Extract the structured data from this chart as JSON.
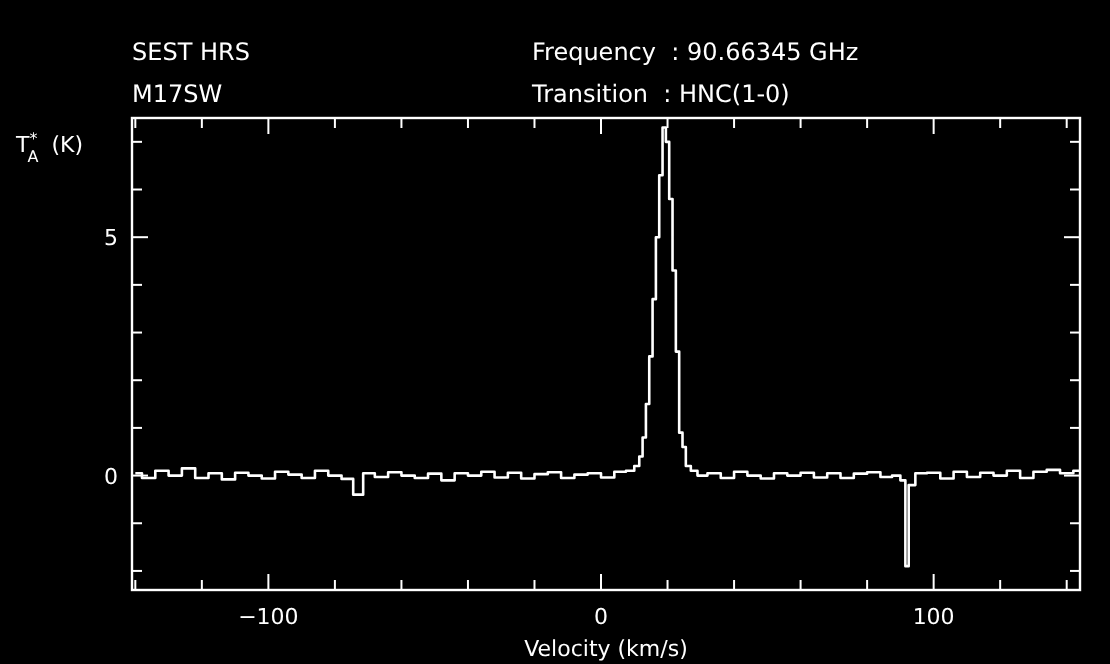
{
  "chart_data": {
    "type": "step",
    "title": "SEST HRS",
    "subtitle": "M17SW",
    "annotations": [
      "Frequency  : 90.66345 GHz",
      "Transition  : HNC(1-0)"
    ],
    "xlabel": "Velocity (km/s)",
    "ylabel": "T$^{*}$$_{A}$ (K)",
    "xlim": [
      -141,
      144
    ],
    "ylim": [
      -2.4,
      7.5
    ],
    "xticks": [
      {
        "value": -140,
        "label": null
      },
      {
        "value": -120,
        "label": null
      },
      {
        "value": -100,
        "label": "−100"
      },
      {
        "value": -80,
        "label": null
      },
      {
        "value": -60,
        "label": null
      },
      {
        "value": -40,
        "label": null
      },
      {
        "value": -20,
        "label": null
      },
      0,
      {
        "value": 20,
        "label": null
      },
      {
        "value": 40,
        "label": null
      },
      {
        "value": 60,
        "label": null
      },
      {
        "value": 80,
        "label": null
      },
      100,
      {
        "value": 120,
        "label": null
      },
      {
        "value": 140,
        "label": null
      }
    ],
    "yticks": [
      {
        "value": -2,
        "label": null
      },
      {
        "value": -1,
        "label": null
      },
      0,
      {
        "value": 1,
        "label": null
      },
      {
        "value": 2,
        "label": null
      },
      {
        "value": 3,
        "label": null
      },
      {
        "value": 4,
        "label": null
      },
      5,
      {
        "value": 6,
        "label": null
      },
      {
        "value": 7,
        "label": null
      }
    ],
    "x": [
      -140,
      -136,
      -132,
      -128,
      -124,
      -120,
      -116,
      -112,
      -108,
      -104,
      -100,
      -96,
      -92,
      -88,
      -84,
      -80,
      -76,
      -73,
      -70,
      -66,
      -62,
      -58,
      -54,
      -50,
      -46,
      -42,
      -38,
      -34,
      -30,
      -26,
      -22,
      -18,
      -14,
      -10,
      -6,
      -2,
      2,
      6,
      9,
      11,
      12,
      13,
      14,
      15,
      16,
      17,
      18,
      19,
      20,
      21,
      22,
      23,
      24,
      25,
      26,
      28,
      30,
      34,
      38,
      42,
      46,
      50,
      54,
      58,
      62,
      66,
      70,
      74,
      78,
      82,
      86,
      89,
      91,
      92,
      93,
      96,
      100,
      104,
      108,
      112,
      116,
      120,
      124,
      128,
      132,
      136,
      140,
      144
    ],
    "series": [
      {
        "color": "#ffffff",
        "values": [
          0.05,
          -0.05,
          0.1,
          0.0,
          0.15,
          -0.05,
          0.05,
          -0.08,
          0.06,
          0.0,
          -0.06,
          0.08,
          0.02,
          -0.05,
          0.1,
          0.0,
          -0.07,
          -0.4,
          0.05,
          -0.03,
          0.07,
          0.0,
          -0.05,
          0.04,
          -0.1,
          0.05,
          0.0,
          0.08,
          -0.04,
          0.06,
          -0.06,
          0.03,
          0.07,
          -0.05,
          0.02,
          0.05,
          -0.04,
          0.08,
          0.1,
          0.2,
          0.4,
          0.8,
          1.5,
          2.5,
          3.7,
          5.0,
          6.3,
          7.3,
          7.0,
          5.8,
          4.3,
          2.6,
          0.9,
          0.6,
          0.2,
          0.1,
          0.0,
          0.05,
          -0.05,
          0.08,
          0.0,
          -0.06,
          0.05,
          0.0,
          0.06,
          -0.04,
          0.05,
          -0.05,
          0.04,
          0.07,
          -0.03,
          0.0,
          -0.1,
          -1.9,
          -0.2,
          0.05,
          0.06,
          -0.06,
          0.08,
          -0.03,
          0.06,
          0.0,
          0.1,
          -0.05,
          0.08,
          0.12,
          0.05,
          0.1
        ]
      }
    ],
    "grid": false
  }
}
